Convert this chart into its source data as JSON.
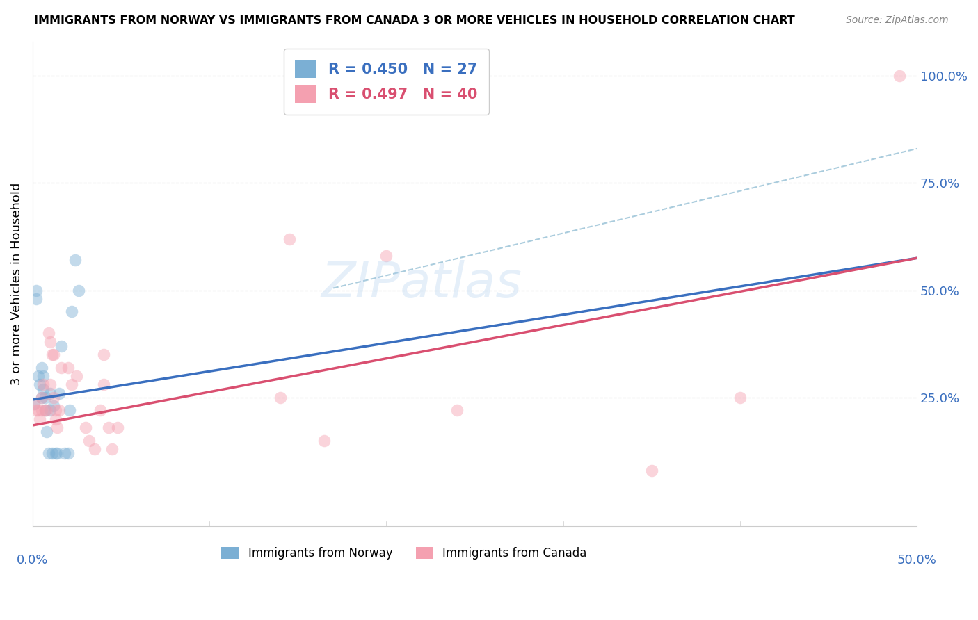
{
  "title": "IMMIGRANTS FROM NORWAY VS IMMIGRANTS FROM CANADA 3 OR MORE VEHICLES IN HOUSEHOLD CORRELATION CHART",
  "source": "Source: ZipAtlas.com",
  "ylabel": "3 or more Vehicles in Household",
  "xmin": 0.0,
  "xmax": 0.5,
  "ymin": -0.05,
  "ymax": 1.08,
  "norway_color": "#7BAFD4",
  "canada_color": "#F4A0B0",
  "norway_line_color": "#3A6FBF",
  "canada_line_color": "#D94F70",
  "dashed_line_color": "#AACCDD",
  "grid_color": "#DDDDDD",
  "legend_R_norway": "R = 0.450",
  "legend_N_norway": "N = 27",
  "legend_R_canada": "R = 0.497",
  "legend_N_canada": "N = 40",
  "legend_bottom1": "Immigrants from Norway",
  "legend_bottom2": "Immigrants from Canada",
  "axis_label_color": "#3A6FBF",
  "watermark": "ZIPatlas",
  "norway_x": [
    0.001,
    0.002,
    0.002,
    0.003,
    0.004,
    0.005,
    0.005,
    0.006,
    0.006,
    0.007,
    0.007,
    0.008,
    0.009,
    0.01,
    0.01,
    0.011,
    0.012,
    0.013,
    0.014,
    0.015,
    0.016,
    0.018,
    0.02,
    0.021,
    0.022,
    0.024,
    0.026
  ],
  "norway_y": [
    0.235,
    0.5,
    0.48,
    0.3,
    0.28,
    0.25,
    0.32,
    0.27,
    0.3,
    0.22,
    0.25,
    0.17,
    0.12,
    0.22,
    0.26,
    0.12,
    0.23,
    0.12,
    0.12,
    0.26,
    0.37,
    0.12,
    0.12,
    0.22,
    0.45,
    0.57,
    0.5
  ],
  "canada_x": [
    0.001,
    0.002,
    0.003,
    0.004,
    0.005,
    0.005,
    0.006,
    0.007,
    0.008,
    0.009,
    0.01,
    0.01,
    0.011,
    0.012,
    0.012,
    0.013,
    0.013,
    0.014,
    0.015,
    0.016,
    0.02,
    0.022,
    0.025,
    0.03,
    0.032,
    0.035,
    0.038,
    0.04,
    0.04,
    0.043,
    0.045,
    0.048,
    0.14,
    0.145,
    0.165,
    0.2,
    0.24,
    0.35,
    0.4,
    0.49
  ],
  "canada_y": [
    0.235,
    0.22,
    0.22,
    0.2,
    0.22,
    0.25,
    0.28,
    0.22,
    0.22,
    0.4,
    0.38,
    0.28,
    0.35,
    0.35,
    0.25,
    0.22,
    0.2,
    0.18,
    0.22,
    0.32,
    0.32,
    0.28,
    0.3,
    0.18,
    0.15,
    0.13,
    0.22,
    0.28,
    0.35,
    0.18,
    0.13,
    0.18,
    0.25,
    0.62,
    0.15,
    0.58,
    0.22,
    0.08,
    0.25,
    1.0
  ],
  "norway_line_x0": 0.0,
  "norway_line_y0": 0.245,
  "norway_line_x1": 0.5,
  "norway_line_y1": 0.575,
  "canada_line_x0": 0.0,
  "canada_line_y0": 0.185,
  "canada_line_x1": 0.5,
  "canada_line_y1": 0.575,
  "dash_line_x0": 0.17,
  "dash_line_y0": 0.505,
  "dash_line_x1": 0.5,
  "dash_line_y1": 0.83,
  "title_fontsize": 11.5,
  "label_fontsize": 13
}
